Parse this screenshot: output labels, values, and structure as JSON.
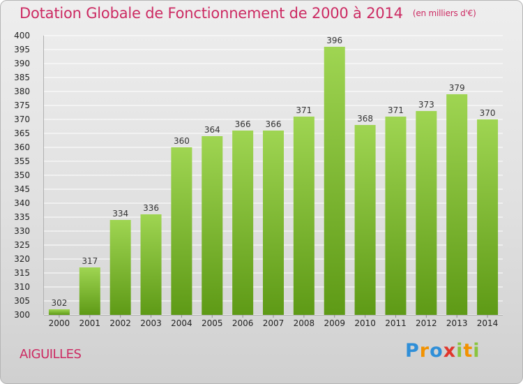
{
  "title": "Dotation Globale de Fonctionnement de 2000 à 2014",
  "unit": "(en milliers d'€)",
  "commune": "AIGUILLES",
  "logo": {
    "letters": [
      "P",
      "r",
      "o",
      "x",
      "i",
      "t",
      "i"
    ],
    "colors": [
      "#2f8fd8",
      "#f29200",
      "#2f8fd8",
      "#e0352b",
      "#8ac43f",
      "#f29200",
      "#8ac43f"
    ]
  },
  "colors": {
    "title": "#cc2a62",
    "bar_top": "#9fd552",
    "bar_bottom": "#5e9a16",
    "grid": "#ffffff"
  },
  "chart_data": {
    "type": "bar",
    "categories": [
      "2000",
      "2001",
      "2002",
      "2003",
      "2004",
      "2005",
      "2006",
      "2007",
      "2008",
      "2009",
      "2010",
      "2011",
      "2012",
      "2013",
      "2014"
    ],
    "values": [
      302,
      317,
      334,
      336,
      360,
      364,
      366,
      366,
      371,
      396,
      368,
      371,
      373,
      379,
      370
    ],
    "title": "Dotation Globale de Fonctionnement de 2000 à 2014",
    "ylim": [
      300,
      400
    ],
    "yticks": [
      300,
      305,
      310,
      315,
      320,
      325,
      330,
      335,
      340,
      345,
      350,
      355,
      360,
      365,
      370,
      375,
      380,
      385,
      390,
      395,
      400
    ],
    "grid": true,
    "legend": "none"
  }
}
